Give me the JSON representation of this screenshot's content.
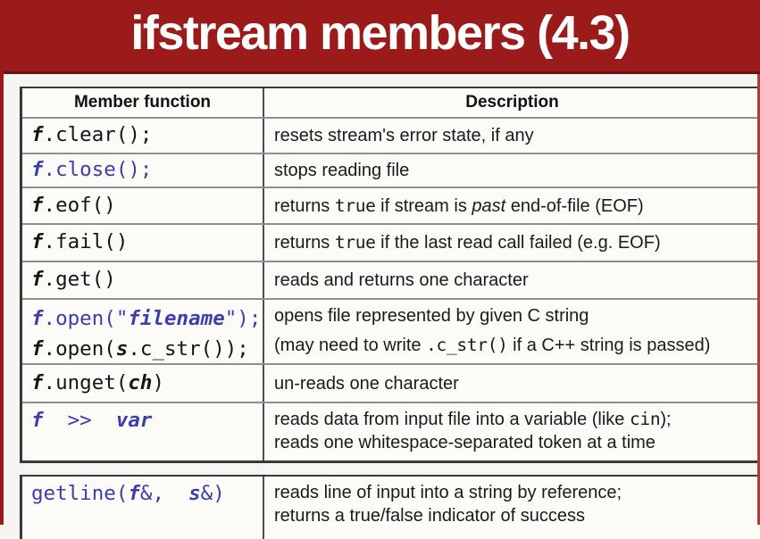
{
  "title": "ifstream members (4.3)",
  "colors": {
    "banner_red": "#9b1b1b",
    "code_blue": "#3d3dab",
    "right_edge_strip": "#a84038",
    "row_background": "#fcfbf7"
  },
  "table": {
    "headers": [
      "Member function",
      "Description"
    ],
    "rows": [
      {
        "member": [
          [
            {
              "t": "f",
              "s": "i"
            },
            {
              "t": ".clear();"
            }
          ]
        ],
        "desc": [
          [
            {
              "t": "resets stream's error state, if any"
            }
          ]
        ]
      },
      {
        "member": [
          [
            {
              "t": "f",
              "s": "i b"
            },
            {
              "t": ".close();",
              "s": "b"
            }
          ]
        ],
        "desc": [
          [
            {
              "t": "stops reading file"
            }
          ]
        ]
      },
      {
        "member": [
          [
            {
              "t": "f",
              "s": "i"
            },
            {
              "t": ".eof()"
            }
          ]
        ],
        "desc": [
          [
            {
              "t": "returns "
            },
            {
              "t": "true",
              "s": "m"
            },
            {
              "t": " if stream is "
            },
            {
              "t": "past",
              "s": "i"
            },
            {
              "t": " end-of-file (EOF)"
            }
          ]
        ]
      },
      {
        "member": [
          [
            {
              "t": "f",
              "s": "i"
            },
            {
              "t": ".fail()"
            }
          ]
        ],
        "desc": [
          [
            {
              "t": "returns "
            },
            {
              "t": "true",
              "s": "m"
            },
            {
              "t": " if the last read call failed (e.g. EOF)"
            }
          ]
        ]
      },
      {
        "member": [
          [
            {
              "t": "f",
              "s": "i"
            },
            {
              "t": ".get()"
            }
          ]
        ],
        "desc": [
          [
            {
              "t": "reads and returns one character"
            }
          ]
        ]
      },
      {
        "member": [
          [
            {
              "t": "f",
              "s": "i b"
            },
            {
              "t": ".open(\"",
              "s": "b"
            },
            {
              "t": "filename",
              "s": "i b"
            },
            {
              "t": "\");",
              "s": "b"
            }
          ],
          [
            {
              "t": "f",
              "s": "i"
            },
            {
              "t": ".open("
            },
            {
              "t": "s",
              "s": "i"
            },
            {
              "t": ".c_str());"
            }
          ]
        ],
        "desc": [
          [
            {
              "t": "opens file represented by given C string"
            }
          ],
          [
            {
              "t": "(may need to write "
            },
            {
              "t": ".c_str()",
              "s": "m"
            },
            {
              "t": " if a C++ string is passed)"
            }
          ]
        ]
      },
      {
        "member": [
          [
            {
              "t": "f",
              "s": "i"
            },
            {
              "t": ".unget("
            },
            {
              "t": "ch",
              "s": "i"
            },
            {
              "t": ")"
            }
          ]
        ],
        "desc": [
          [
            {
              "t": "un-reads one character"
            }
          ]
        ]
      },
      {
        "member": [
          [
            {
              "t": "f",
              "s": "i b"
            },
            {
              "t": "  >>  ",
              "s": "b"
            },
            {
              "t": "var",
              "s": "i b"
            }
          ]
        ],
        "desc": [
          [
            {
              "t": "reads data from input file into a variable (like "
            },
            {
              "t": "cin",
              "s": "m"
            },
            {
              "t": ");"
            }
          ],
          [
            {
              "t": "reads one whitespace-separated token at a time"
            }
          ]
        ]
      }
    ]
  },
  "table2": {
    "rows": [
      {
        "member": [
          [
            {
              "t": "getline(",
              "s": "b"
            },
            {
              "t": "f",
              "s": "i b"
            },
            {
              "t": "&,  ",
              "s": "b"
            },
            {
              "t": "s",
              "s": "i b"
            },
            {
              "t": "&)",
              "s": "b"
            }
          ]
        ],
        "desc": [
          [
            {
              "t": "reads line of input into a string by reference;"
            }
          ],
          [
            {
              "t": "returns a true/false indicator of success"
            }
          ]
        ]
      }
    ]
  }
}
